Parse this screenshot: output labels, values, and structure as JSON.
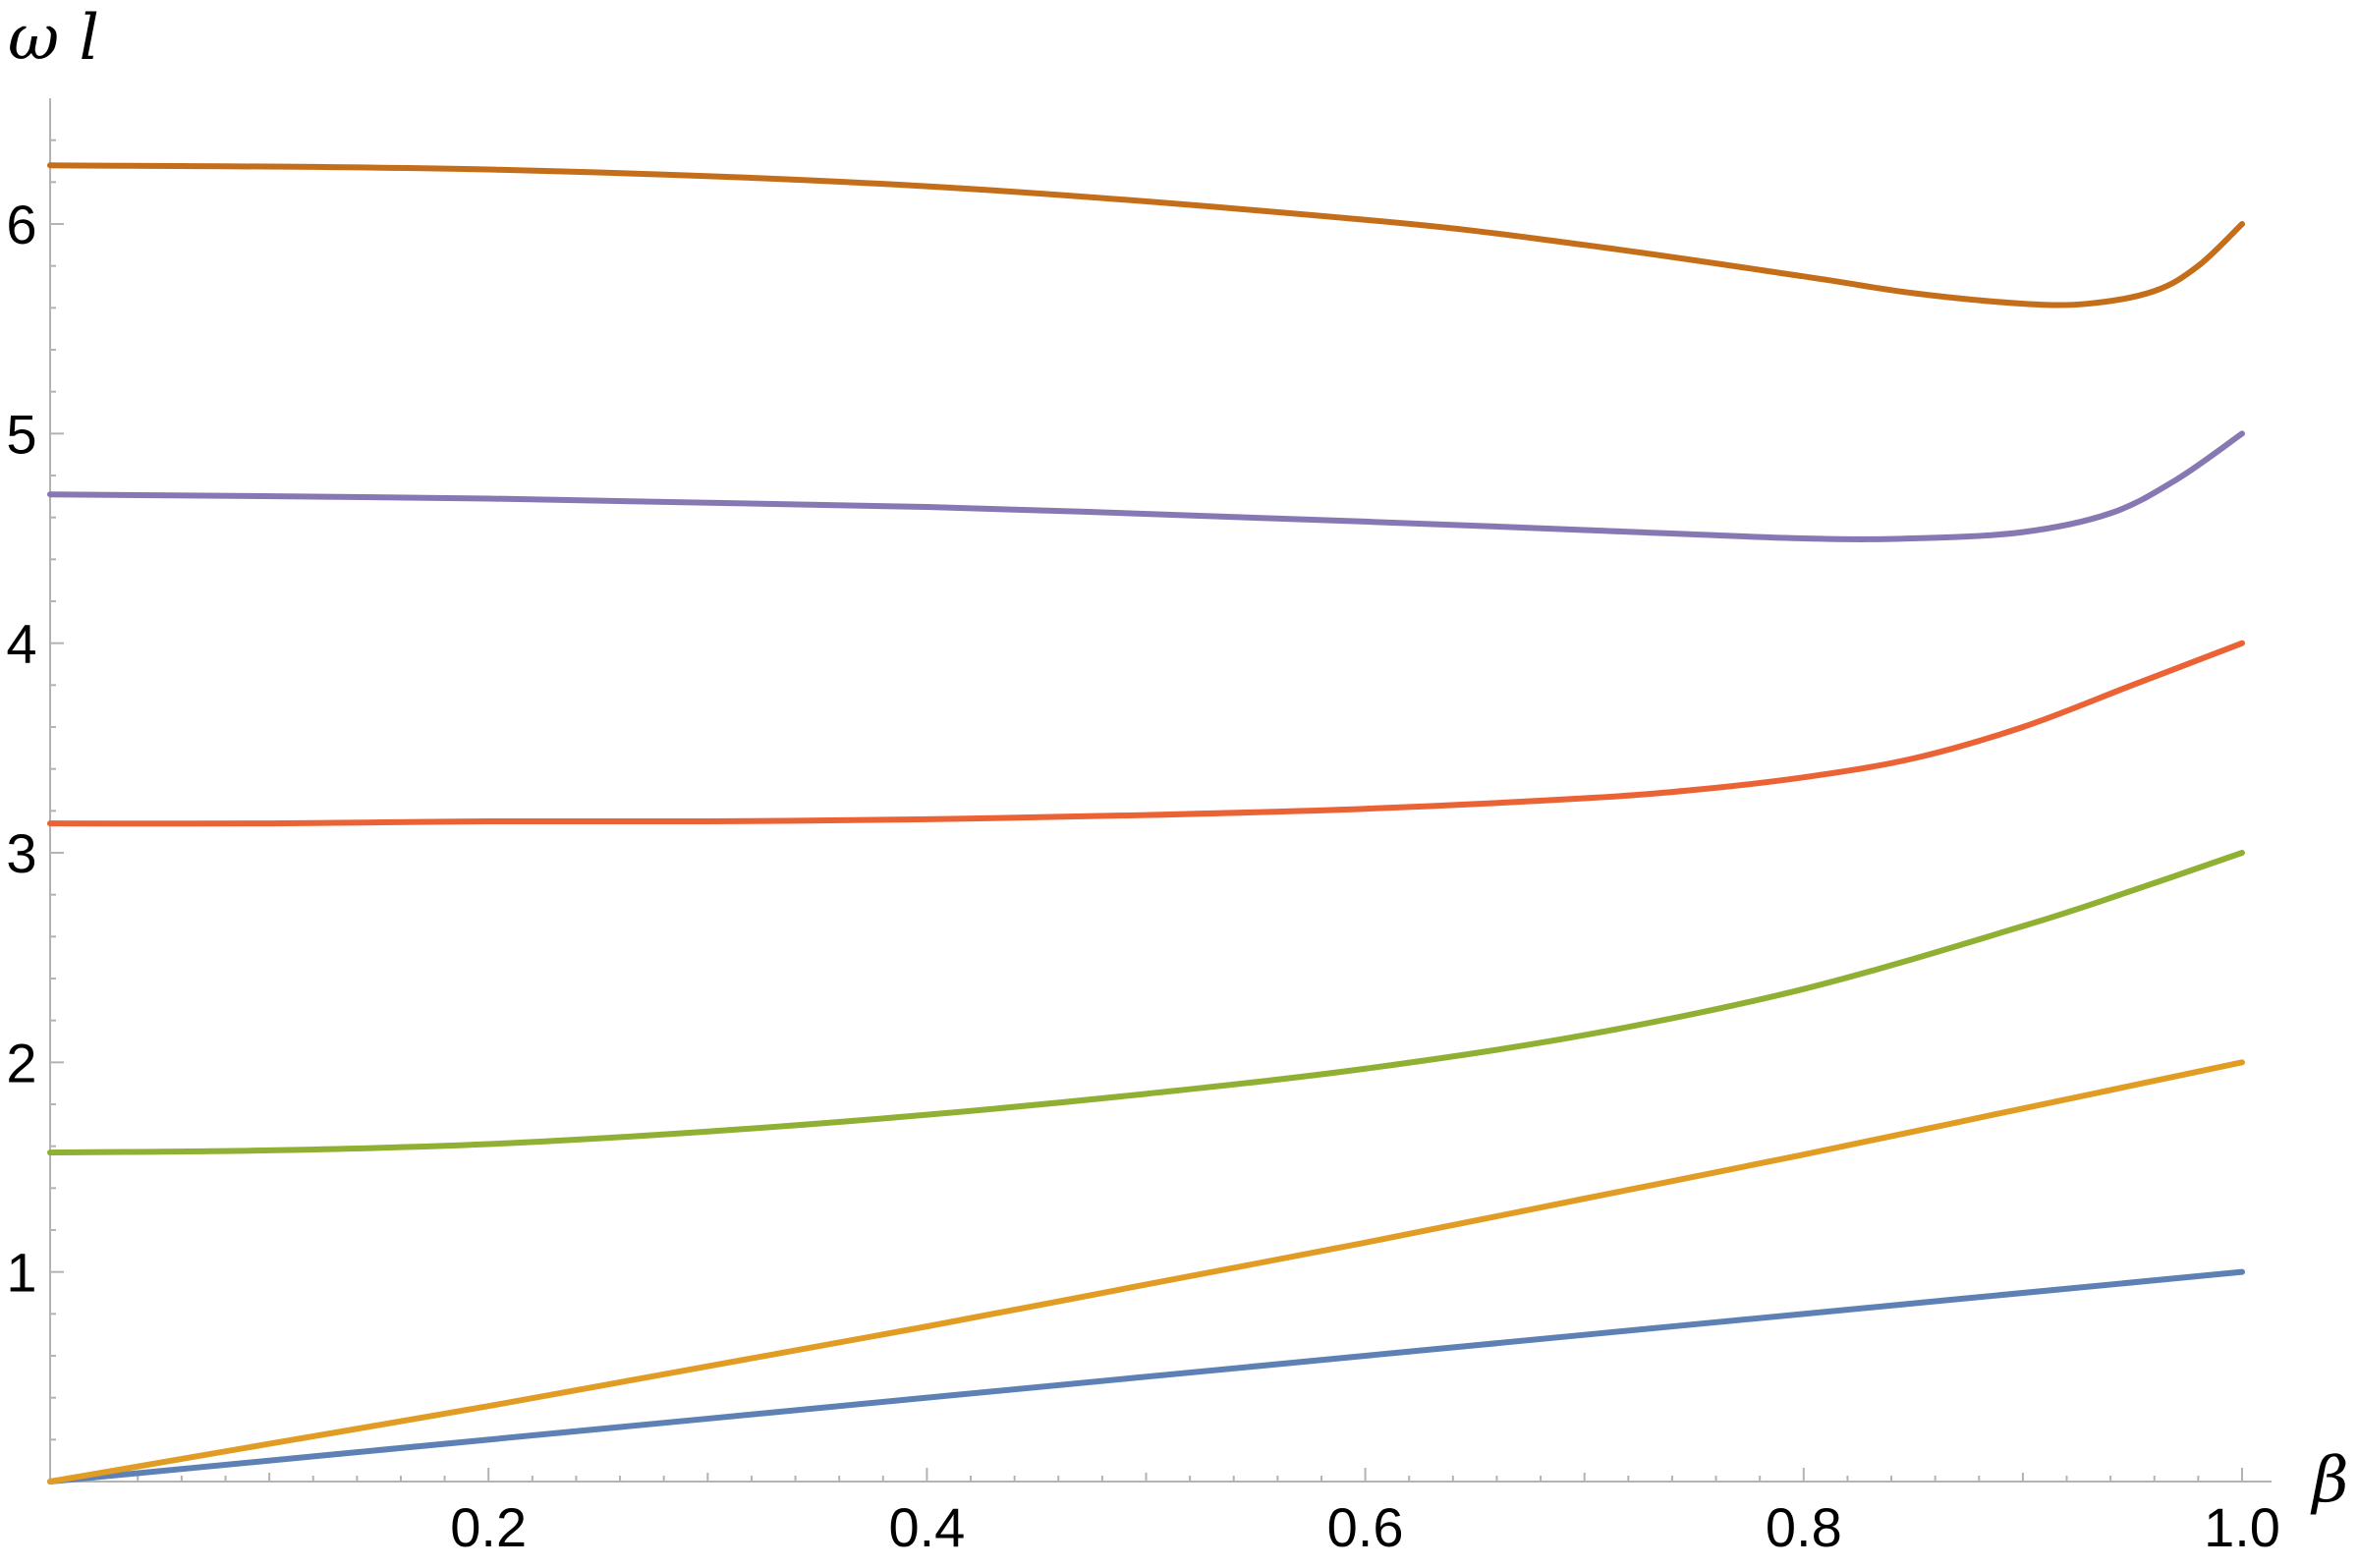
{
  "chart_data": {
    "type": "line",
    "title": "",
    "xlabel": "β",
    "ylabel": "ω l",
    "xlim": [
      0,
      1.0
    ],
    "ylim": [
      0,
      6.6
    ],
    "grid": false,
    "x_ticks": [
      "0.2",
      "0.4",
      "0.6",
      "0.8",
      "1.0"
    ],
    "y_ticks": [
      "1",
      "2",
      "3",
      "4",
      "5",
      "6"
    ],
    "series": [
      {
        "color": "#5E81B5",
        "x": [
          0,
          0.2,
          0.4,
          0.6,
          0.8,
          1.0
        ],
        "y": [
          0,
          0.2,
          0.4,
          0.6,
          0.8,
          1.0
        ]
      },
      {
        "color": "#E19C24",
        "x": [
          0,
          0.1,
          0.2,
          0.3,
          0.4,
          0.5,
          0.6,
          0.7,
          0.8,
          0.9,
          1.0
        ],
        "y": [
          0,
          0.18,
          0.36,
          0.55,
          0.74,
          0.94,
          1.14,
          1.35,
          1.56,
          1.78,
          2.0
        ]
      },
      {
        "color": "#8FB032",
        "x": [
          0,
          0.1,
          0.2,
          0.3,
          0.4,
          0.5,
          0.6,
          0.7,
          0.8,
          0.9,
          0.95,
          1.0
        ],
        "y": [
          1.57,
          1.58,
          1.61,
          1.67,
          1.75,
          1.85,
          1.97,
          2.13,
          2.35,
          2.65,
          2.82,
          3.0
        ]
      },
      {
        "color": "#EB6235",
        "x": [
          0,
          0.1,
          0.2,
          0.3,
          0.4,
          0.5,
          0.6,
          0.7,
          0.75,
          0.8,
          0.85,
          0.9,
          0.95,
          1.0
        ],
        "y": [
          3.14,
          3.14,
          3.15,
          3.15,
          3.16,
          3.18,
          3.21,
          3.26,
          3.3,
          3.36,
          3.45,
          3.6,
          3.8,
          4.0
        ]
      },
      {
        "color": "#8778B3",
        "x": [
          0,
          0.2,
          0.4,
          0.6,
          0.7,
          0.8,
          0.85,
          0.9,
          0.94,
          0.97,
          1.0
        ],
        "y": [
          4.71,
          4.69,
          4.65,
          4.58,
          4.54,
          4.5,
          4.5,
          4.53,
          4.62,
          4.78,
          5.0
        ]
      },
      {
        "color": "#C56E1A",
        "x": [
          0,
          0.2,
          0.4,
          0.6,
          0.7,
          0.8,
          0.85,
          0.9,
          0.93,
          0.96,
          0.98,
          1.0
        ],
        "y": [
          6.28,
          6.26,
          6.18,
          6.02,
          5.9,
          5.75,
          5.67,
          5.62,
          5.62,
          5.68,
          5.8,
          6.0
        ]
      }
    ]
  }
}
